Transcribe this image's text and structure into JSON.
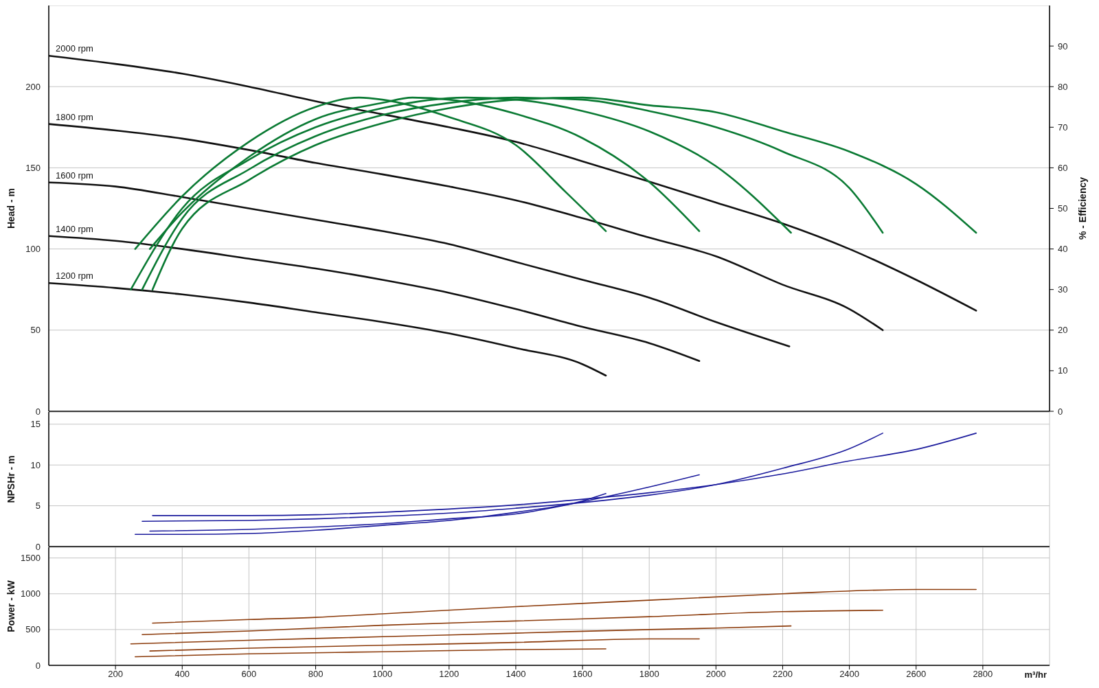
{
  "chart_data": [
    {
      "type": "line",
      "ylabel": "Head - m",
      "y2label": "% - Efficiency",
      "xlim": [
        0,
        3000
      ],
      "xticks": [
        200,
        400,
        600,
        800,
        1000,
        1200,
        1400,
        1600,
        1800,
        2000,
        2200,
        2400,
        2600,
        2800
      ],
      "ylim": [
        0,
        250
      ],
      "yticks": [
        0,
        50,
        100,
        150,
        200
      ],
      "y2lim": [
        0,
        100
      ],
      "y2ticks": [
        0,
        10,
        20,
        30,
        40,
        50,
        60,
        70,
        80,
        90
      ],
      "grid": true,
      "tick_labels": "y",
      "series": [
        {
          "name": "2000 rpm",
          "color": "#111111",
          "x": [
            0,
            200,
            400,
            600,
            800,
            1000,
            1200,
            1400,
            1600,
            1800,
            2000,
            2200,
            2400,
            2600,
            2780
          ],
          "values": [
            219,
            214,
            208,
            200,
            191,
            183,
            175,
            166,
            154,
            141.5,
            128.6,
            115.7,
            100,
            81,
            62
          ]
        },
        {
          "name": "1800 rpm",
          "color": "#111111",
          "x": [
            0,
            200,
            400,
            600,
            800,
            1000,
            1200,
            1400,
            1600,
            1800,
            2000,
            2200,
            2400,
            2500
          ],
          "values": [
            177,
            173,
            168,
            161,
            153,
            146,
            138.5,
            130,
            119,
            107,
            95.5,
            78,
            63,
            50
          ]
        },
        {
          "name": "1600 rpm",
          "color": "#111111",
          "x": [
            0,
            200,
            400,
            600,
            800,
            1000,
            1200,
            1400,
            1600,
            1800,
            2000,
            2220
          ],
          "values": [
            141,
            138.5,
            132,
            125,
            118,
            111,
            103,
            92,
            81,
            70,
            55,
            40
          ]
        },
        {
          "name": "1400 rpm",
          "color": "#111111",
          "x": [
            0,
            200,
            400,
            600,
            800,
            1000,
            1200,
            1400,
            1600,
            1800,
            1950
          ],
          "values": [
            108,
            105,
            100,
            94,
            88,
            81,
            73,
            63,
            52,
            42,
            31
          ]
        },
        {
          "name": "1200 rpm",
          "color": "#111111",
          "x": [
            0,
            200,
            400,
            600,
            800,
            1000,
            1200,
            1400,
            1600,
            1670
          ],
          "values": [
            79,
            76,
            72,
            67,
            61,
            55,
            48,
            39,
            29,
            22
          ]
        },
        {
          "color": "#0a7a33",
          "axis": "y2",
          "x": [
            259,
            400,
            600,
            800,
            930,
            1000,
            1200,
            1400,
            1550,
            1670
          ],
          "values": [
            40,
            53,
            66.4,
            75,
            77.3,
            76.8,
            72.5,
            65.6,
            54,
            44.4
          ]
        },
        {
          "color": "#0a7a33",
          "axis": "y2",
          "x": [
            303,
            400,
            600,
            800,
            1000,
            1090,
            1200,
            1400,
            1600,
            1800,
            1950
          ],
          "values": [
            40,
            49,
            62.7,
            72,
            76,
            77.3,
            76.8,
            73.3,
            67.3,
            56.5,
            44.4
          ]
        },
        {
          "color": "#0a7a33",
          "axis": "y2",
          "x": [
            246,
            400,
            600,
            800,
            1000,
            1250,
            1400,
            1600,
            1800,
            2000,
            2225
          ],
          "values": [
            30,
            50,
            62,
            70,
            74.7,
            77.3,
            76.8,
            74,
            69,
            60.4,
            44
          ]
        },
        {
          "color": "#0a7a33",
          "axis": "y2",
          "x": [
            280,
            400,
            600,
            800,
            1000,
            1200,
            1400,
            1600,
            1800,
            2000,
            2200,
            2400,
            2500
          ],
          "values": [
            30,
            47.5,
            59.6,
            67.8,
            73,
            76,
            77.3,
            76.8,
            74,
            70,
            64,
            55,
            44
          ]
        },
        {
          "color": "#0a7a33",
          "axis": "y2",
          "x": [
            311,
            400,
            600,
            800,
            1000,
            1200,
            1400,
            1600,
            1800,
            2000,
            2200,
            2400,
            2600,
            2780
          ],
          "values": [
            30,
            45,
            57,
            65.6,
            71,
            74.7,
            76.8,
            77.3,
            75.4,
            73.7,
            69,
            64,
            56,
            44
          ]
        }
      ]
    },
    {
      "type": "line",
      "ylabel": "NPSHr - m",
      "xlim": [
        0,
        3000
      ],
      "xticks": [
        200,
        400,
        600,
        800,
        1000,
        1200,
        1400,
        1600,
        1800,
        2000,
        2200,
        2400,
        2600,
        2800
      ],
      "ylim": [
        0,
        16.5
      ],
      "yticks": [
        0,
        5,
        10,
        15
      ],
      "grid": true,
      "tick_labels": "y",
      "series": [
        {
          "color": "#1a1a9c",
          "x": [
            259,
            400,
            600,
            800,
            1000,
            1200,
            1400,
            1600,
            1670
          ],
          "values": [
            1.5,
            1.5,
            1.6,
            2,
            2.6,
            3.2,
            4.2,
            5.6,
            6.5
          ]
        },
        {
          "color": "#1a1a9c",
          "x": [
            303,
            600,
            800,
            1000,
            1200,
            1400,
            1600,
            1800,
            1950
          ],
          "values": [
            1.9,
            2.1,
            2.4,
            2.8,
            3.4,
            4,
            5.5,
            7.3,
            8.8
          ]
        },
        {
          "color": "#1a1a9c",
          "x": [
            280,
            600,
            800,
            1000,
            1200,
            1400,
            1600,
            1800,
            2000,
            2200,
            2400,
            2500
          ],
          "values": [
            3.1,
            3.2,
            3.4,
            3.7,
            4.1,
            4.7,
            5.4,
            6.3,
            7.6,
            9.6,
            12,
            13.9
          ]
        },
        {
          "color": "#1a1a9c",
          "x": [
            311,
            600,
            800,
            1000,
            1200,
            1400,
            1600,
            1800,
            2000,
            2200,
            2400,
            2600,
            2780
          ],
          "values": [
            3.8,
            3.8,
            3.9,
            4.2,
            4.6,
            5.1,
            5.8,
            6.6,
            7.6,
            8.9,
            10.5,
            11.9,
            13.9
          ]
        }
      ]
    },
    {
      "type": "line",
      "ylabel": "Power - kW",
      "xlabel": "m³/hr",
      "xlim": [
        0,
        3000
      ],
      "xticks": [
        200,
        400,
        600,
        800,
        1000,
        1200,
        1400,
        1600,
        1800,
        2000,
        2200,
        2400,
        2600,
        2800
      ],
      "ylim": [
        0,
        1650
      ],
      "yticks": [
        0,
        500,
        1000,
        1500
      ],
      "grid": true,
      "series": [
        {
          "color": "#8b3a0a",
          "x": [
            259,
            600,
            1000,
            1400,
            1670
          ],
          "values": [
            120,
            160,
            190,
            220,
            230
          ]
        },
        {
          "color": "#8b3a0a",
          "x": [
            303,
            600,
            1000,
            1400,
            1800,
            1950
          ],
          "values": [
            200,
            240,
            280,
            320,
            370,
            370
          ]
        },
        {
          "color": "#8b3a0a",
          "x": [
            246,
            600,
            1000,
            1400,
            1800,
            2000,
            2225
          ],
          "values": [
            300,
            350,
            400,
            450,
            500,
            520,
            550
          ]
        },
        {
          "color": "#8b3a0a",
          "x": [
            280,
            600,
            1000,
            1400,
            1800,
            2200,
            2500
          ],
          "values": [
            430,
            480,
            560,
            620,
            680,
            750,
            770
          ]
        },
        {
          "color": "#8b3a0a",
          "x": [
            311,
            600,
            800,
            1000,
            1400,
            1800,
            2200,
            2600,
            2780
          ],
          "values": [
            590,
            640,
            670,
            720,
            820,
            910,
            1000,
            1060,
            1060
          ]
        }
      ]
    }
  ]
}
